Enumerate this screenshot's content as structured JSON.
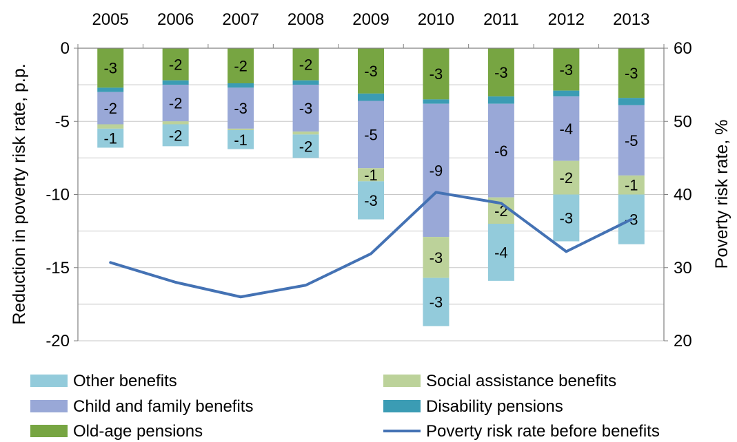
{
  "chart_data": {
    "type": "bar",
    "title": "",
    "categories": [
      "2005",
      "2006",
      "2007",
      "2008",
      "2009",
      "2010",
      "2011",
      "2012",
      "2013"
    ],
    "ylabel": "Reduction in poverty risk rate, p.p.",
    "y2label": "Poverty risk rate, %",
    "ylim": [
      -20,
      0
    ],
    "y2lim": [
      20,
      60
    ],
    "yticks": [
      0,
      -5,
      -10,
      -15,
      -20
    ],
    "y2ticks": [
      60,
      50,
      40,
      30,
      20
    ],
    "grid": true,
    "legend_position": "bottom",
    "series": [
      {
        "name": "Old-age pensions",
        "color": "#77a542",
        "type": "bar",
        "values": [
          -2.7,
          -2.2,
          -2.4,
          -2.2,
          -3.1,
          -3.5,
          -3.3,
          -2.9,
          -3.4
        ],
        "labels": [
          "-3",
          "-2",
          "-2",
          "-2",
          "-3",
          "-3",
          "-3",
          "-3",
          "-3"
        ]
      },
      {
        "name": "Disability pensions",
        "color": "#3b9cb4",
        "type": "bar",
        "values": [
          -0.3,
          -0.3,
          -0.3,
          -0.3,
          -0.5,
          -0.3,
          -0.5,
          -0.4,
          -0.5
        ],
        "labels": [
          "",
          "",
          "",
          "",
          "",
          "",
          "",
          "",
          ""
        ]
      },
      {
        "name": "Child and family benefits",
        "color": "#99a8d7",
        "type": "bar",
        "values": [
          -2.2,
          -2.5,
          -2.8,
          -3.2,
          -4.6,
          -9.1,
          -6.4,
          -4.4,
          -4.8
        ],
        "labels": [
          "-2",
          "-2",
          "-3",
          "-3",
          "-5",
          "-9",
          "-6",
          "-4",
          "-5"
        ]
      },
      {
        "name": "Social assistance benefits",
        "color": "#bcd29a",
        "type": "bar",
        "values": [
          -0.3,
          -0.2,
          -0.1,
          -0.2,
          -0.9,
          -2.8,
          -1.8,
          -2.3,
          -1.3
        ],
        "labels": [
          "",
          "",
          "",
          "",
          "-1",
          "-3",
          "-2",
          "-2",
          "-1"
        ]
      },
      {
        "name": "Other benefits",
        "color": "#93cbdb",
        "type": "bar",
        "values": [
          -1.3,
          -1.5,
          -1.3,
          -1.6,
          -2.6,
          -3.3,
          -3.9,
          -3.2,
          -3.4
        ],
        "labels": [
          "-1",
          "-2",
          "-1",
          "-2",
          "-3",
          "-3",
          "-4",
          "-3",
          "-3"
        ]
      },
      {
        "name": "Poverty risk rate before benefits",
        "color": "#4472b4",
        "type": "line",
        "axis": "right",
        "values": [
          30.7,
          28.0,
          26.0,
          27.6,
          31.9,
          40.3,
          38.8,
          32.2,
          36.6
        ]
      }
    ]
  }
}
